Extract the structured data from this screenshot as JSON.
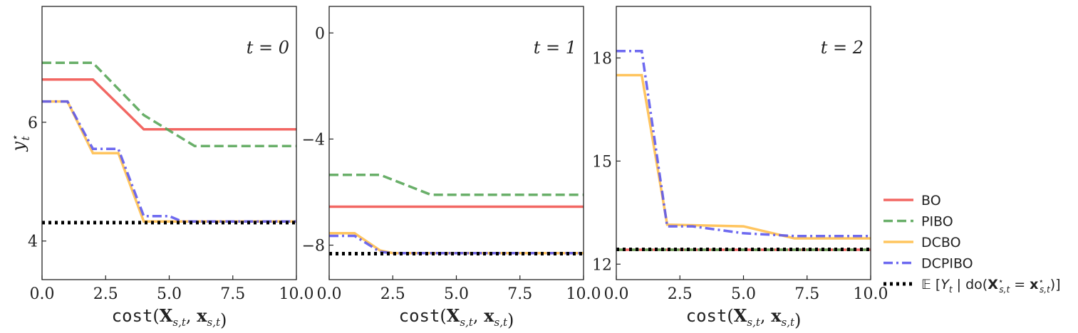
{
  "chart_data": [
    {
      "type": "line",
      "annotation": "t = 0",
      "xlabel": "cost(X_{s,t}, x_{s,t})",
      "ylabel": "y_t*",
      "xlim": [
        0,
        10
      ],
      "ylim": [
        3.35,
        7.95
      ],
      "xticks": [
        0,
        2.5,
        5,
        7.5,
        10
      ],
      "xtick_labels": [
        "0.0",
        "2.5",
        "5.0",
        "7.5",
        "10.0"
      ],
      "yticks": [
        4,
        6
      ],
      "ytick_labels": [
        "4",
        "6"
      ],
      "series": [
        {
          "name": "BO",
          "x": [
            0,
            2,
            4,
            10
          ],
          "y": [
            6.72,
            6.72,
            5.88,
            5.88
          ]
        },
        {
          "name": "PIBO",
          "x": [
            0,
            2,
            4,
            6,
            10
          ],
          "y": [
            7.0,
            7.0,
            6.12,
            5.6,
            5.6
          ]
        },
        {
          "name": "DCBO",
          "x": [
            0,
            1,
            2,
            3,
            4,
            10
          ],
          "y": [
            6.35,
            6.35,
            5.48,
            5.48,
            4.33,
            4.33
          ]
        },
        {
          "name": "DCPIBO",
          "x": [
            0,
            1,
            2,
            3,
            4,
            5,
            5.5,
            10
          ],
          "y": [
            6.35,
            6.35,
            5.55,
            5.55,
            4.42,
            4.42,
            4.33,
            4.33
          ]
        },
        {
          "name": "E[Y_t | do(X*_{s,t} = x*_{s,t})]",
          "x": [
            0,
            10
          ],
          "y": [
            4.31,
            4.31
          ]
        }
      ]
    },
    {
      "type": "line",
      "annotation": "t = 1",
      "xlabel": "cost(X_{s,t}, x_{s,t})",
      "ylabel": "",
      "xlim": [
        0,
        10
      ],
      "ylim": [
        -9.3,
        1.0
      ],
      "xticks": [
        0,
        2.5,
        5,
        7.5,
        10
      ],
      "xtick_labels": [
        "0.0",
        "2.5",
        "5.0",
        "7.5",
        "10.0"
      ],
      "yticks": [
        0,
        -4,
        -8
      ],
      "ytick_labels": [
        "0",
        "−4",
        "−8"
      ],
      "series": [
        {
          "name": "BO",
          "x": [
            0,
            10
          ],
          "y": [
            -6.55,
            -6.55
          ]
        },
        {
          "name": "PIBO",
          "x": [
            0,
            2,
            4,
            10
          ],
          "y": [
            -5.35,
            -5.35,
            -6.1,
            -6.1
          ]
        },
        {
          "name": "DCBO",
          "x": [
            0,
            1,
            2,
            2.5,
            10
          ],
          "y": [
            -7.55,
            -7.55,
            -8.2,
            -8.3,
            -8.3
          ]
        },
        {
          "name": "DCPIBO",
          "x": [
            0,
            1,
            2,
            2.5,
            10
          ],
          "y": [
            -7.65,
            -7.65,
            -8.25,
            -8.3,
            -8.3
          ]
        },
        {
          "name": "E[Y_t | do(X*_{s,t} = x*_{s,t})]",
          "x": [
            0,
            10
          ],
          "y": [
            -8.32,
            -8.32
          ]
        }
      ]
    },
    {
      "type": "line",
      "annotation": "t = 2",
      "xlabel": "cost(X_{s,t}, x_{s,t})",
      "ylabel": "",
      "xlim": [
        0,
        10
      ],
      "ylim": [
        11.55,
        19.5
      ],
      "xticks": [
        0,
        2.5,
        5,
        7.5,
        10
      ],
      "xtick_labels": [
        "0.0",
        "2.5",
        "5.0",
        "7.5",
        "10.0"
      ],
      "yticks": [
        12,
        15,
        18
      ],
      "ytick_labels": [
        "12",
        "15",
        "18"
      ],
      "series": [
        {
          "name": "BO",
          "x": [
            0,
            10
          ],
          "y": [
            12.42,
            12.42
          ]
        },
        {
          "name": "PIBO",
          "x": [
            0,
            10
          ],
          "y": [
            12.42,
            12.42
          ]
        },
        {
          "name": "DCBO",
          "x": [
            0,
            1,
            2,
            5,
            7,
            10
          ],
          "y": [
            17.5,
            17.5,
            13.15,
            13.1,
            12.75,
            12.75
          ]
        },
        {
          "name": "DCPIBO",
          "x": [
            0,
            1,
            2,
            3,
            5,
            7,
            10
          ],
          "y": [
            18.2,
            18.2,
            13.1,
            13.1,
            12.9,
            12.82,
            12.82
          ]
        },
        {
          "name": "E[Y_t | do(X*_{s,t} = x*_{s,t})]",
          "x": [
            0,
            10
          ],
          "y": [
            12.43,
            12.43
          ]
        }
      ]
    }
  ],
  "legend": {
    "placement": "outside-right-bottom",
    "entries": [
      {
        "name": "BO",
        "label": "BO"
      },
      {
        "name": "PIBO",
        "label": "PIBO"
      },
      {
        "name": "DCBO",
        "label": "DCBO"
      },
      {
        "name": "DCPIBO",
        "label": "DCPIBO"
      },
      {
        "name": "E[Y_t | do(X*_{s,t} = x*_{s,t})]",
        "label": "E[Y_t | do(X*_{s,t} = x*_{s,t})]"
      }
    ]
  },
  "styles": {
    "BO": {
      "color": "#f0524d",
      "dash": "solid"
    },
    "PIBO": {
      "color": "#54a454",
      "dash": "dashed"
    },
    "DCBO": {
      "color": "#ffbd49",
      "dash": "solid"
    },
    "DCPIBO": {
      "color": "#5a55ee",
      "dash": "dashdot"
    },
    "E[Y_t | do(X*_{s,t} = x*_{s,t})]": {
      "color": "#000000",
      "dash": "dotted"
    }
  }
}
